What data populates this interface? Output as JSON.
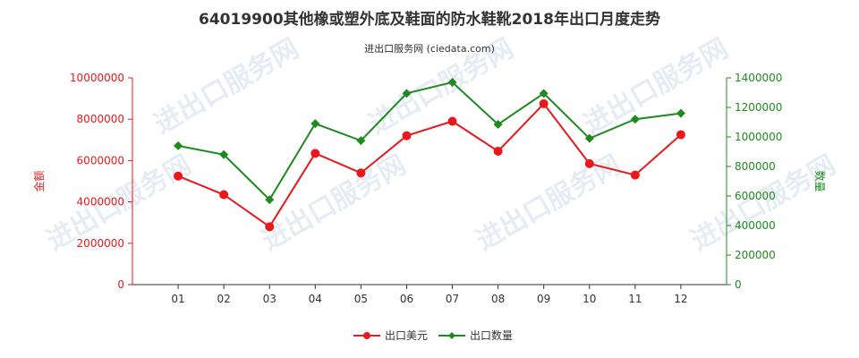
{
  "chart_data": {
    "type": "line",
    "title": "64019900其他橡或塑外底及鞋面的防水鞋靴2018年出口月度走势",
    "subtitle": "进出口服务网 (ciedata.com)",
    "watermark": "进出口服务网",
    "categories": [
      "01",
      "02",
      "03",
      "04",
      "05",
      "06",
      "07",
      "08",
      "09",
      "10",
      "11",
      "12"
    ],
    "ylabel_left": "金额",
    "ylabel_right": "数量",
    "ylim_left": [
      0,
      10000000
    ],
    "ylim_right": [
      0,
      1400000
    ],
    "yticks_left": [
      "0",
      "2000000",
      "4000000",
      "6000000",
      "8000000",
      "10000000"
    ],
    "yticks_right": [
      "0",
      "200000",
      "400000",
      "600000",
      "800000",
      "1000000",
      "1200000",
      "1400000"
    ],
    "legend_position": "bottom",
    "grid": false,
    "series": [
      {
        "name": "出口美元",
        "axis": "left",
        "color": "#e8191c",
        "marker": "circle",
        "values": [
          5250000,
          4350000,
          2800000,
          6350000,
          5400000,
          7200000,
          7900000,
          6450000,
          8750000,
          5850000,
          5300000,
          7250000
        ]
      },
      {
        "name": "出口数量",
        "axis": "right",
        "color": "#1f8a1f",
        "marker": "diamond",
        "values": [
          940000,
          880000,
          575000,
          1090000,
          975000,
          1295000,
          1370000,
          1085000,
          1295000,
          990000,
          1120000,
          1160000
        ]
      }
    ]
  }
}
